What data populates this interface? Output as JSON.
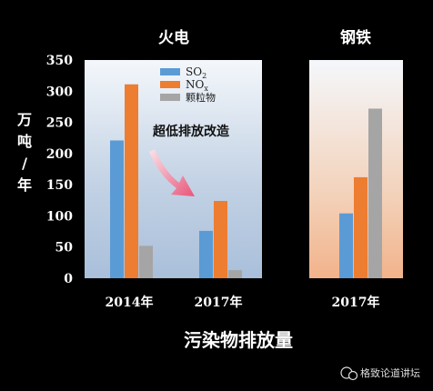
{
  "chart_data": {
    "type": "bar",
    "ylabel": "万吨/年",
    "xlabel": "污染物排放量",
    "ylim": [
      0,
      350
    ],
    "yticks": [
      "0",
      "50",
      "100",
      "150",
      "200",
      "250",
      "300",
      "350"
    ],
    "series_names": [
      "SO2",
      "NOx",
      "颗粒物"
    ],
    "series_colors": [
      "#5b9bd5",
      "#ed7d31",
      "#a5a5a5"
    ],
    "annotation": "超低排放改造",
    "panels": [
      {
        "title": "火电",
        "categories": [
          "2014年",
          "2017年"
        ],
        "series": [
          {
            "name": "SO2",
            "values": [
              221,
              76
            ]
          },
          {
            "name": "NOx",
            "values": [
              311,
              124
            ]
          },
          {
            "name": "颗粒物",
            "values": [
              52,
              13
            ]
          }
        ]
      },
      {
        "title": "钢铁",
        "categories": [
          "2017年"
        ],
        "series": [
          {
            "name": "SO2",
            "values": [
              104
            ]
          },
          {
            "name": "NOx",
            "values": [
              162
            ]
          },
          {
            "name": "颗粒物",
            "values": [
              272
            ]
          }
        ]
      }
    ]
  },
  "legend": {
    "so2_main": "SO",
    "so2_sub": "2",
    "nox_main": "NO",
    "nox_sub": "x",
    "pm": "颗粒物"
  },
  "watermark": "格致论道讲坛"
}
